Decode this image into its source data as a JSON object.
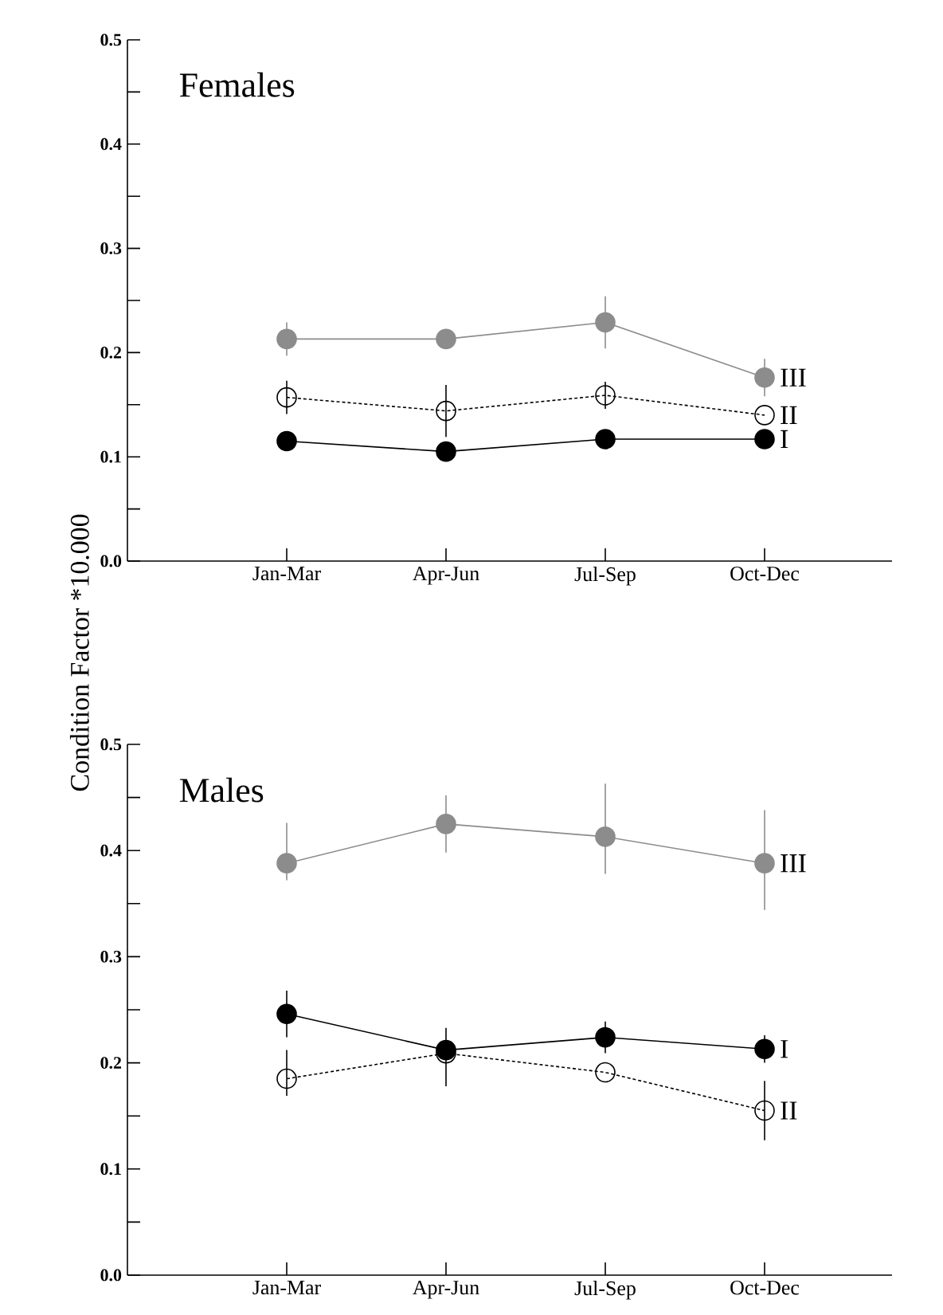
{
  "chart_data": [
    {
      "type": "line",
      "title": "Females",
      "ylabel": "Condition Factor *10.000",
      "categories": [
        "Jan-Mar",
        "Apr-Jun",
        "Jul-Sep",
        "Oct-Dec"
      ],
      "ylim": [
        0,
        0.5
      ],
      "yticks": [
        {
          "value": 0,
          "label": "0.0"
        },
        {
          "value": 0.05,
          "label": null
        },
        {
          "value": 0.1,
          "label": "0.1"
        },
        {
          "value": 0.15,
          "label": null
        },
        {
          "value": 0.2,
          "label": "0.2"
        },
        {
          "value": 0.25,
          "label": null
        },
        {
          "value": 0.3,
          "label": "0.3"
        },
        {
          "value": 0.35,
          "label": null
        },
        {
          "value": 0.4,
          "label": "0.4"
        },
        {
          "value": 0.45,
          "label": null
        },
        {
          "value": 0.5,
          "label": "0.5"
        }
      ],
      "marker": "circle",
      "series": [
        {
          "name": "I",
          "color": "#000000",
          "line_style": "solid",
          "values": [
            0.115,
            0.105,
            0.117,
            0.117
          ]
        },
        {
          "name": "II",
          "color": "#000000",
          "line_style": "dashed",
          "values": [
            0.157,
            0.144,
            0.159,
            0.14
          ],
          "errors": [
            0.016,
            0.025,
            0.013,
            null
          ]
        },
        {
          "name": "III",
          "color": "#8c8c8c",
          "line_style": "solid",
          "values": [
            0.213,
            0.213,
            0.229,
            0.176
          ],
          "errors": [
            0.016,
            null,
            0.025,
            0.018
          ]
        }
      ]
    },
    {
      "type": "line",
      "title": "Males",
      "categories": [
        "Jan-Mar",
        "Apr-Jun",
        "Jul-Sep",
        "Oct-Dec"
      ],
      "ylim": [
        0,
        0.5
      ],
      "yticks": [
        {
          "value": 0,
          "label": "0.0"
        },
        {
          "value": 0.05,
          "label": null
        },
        {
          "value": 0.1,
          "label": "0.1"
        },
        {
          "value": 0.15,
          "label": null
        },
        {
          "value": 0.2,
          "label": "0.2"
        },
        {
          "value": 0.25,
          "label": null
        },
        {
          "value": 0.3,
          "label": "0.3"
        },
        {
          "value": 0.35,
          "label": null
        },
        {
          "value": 0.4,
          "label": "0.4"
        },
        {
          "value": 0.45,
          "label": null
        },
        {
          "value": 0.5,
          "label": "0.5"
        }
      ],
      "marker": "circle",
      "series": [
        {
          "name": "I",
          "color": "#000000",
          "line_style": "solid",
          "values": [
            0.246,
            0.212,
            0.224,
            0.213
          ],
          "errors": [
            0.022,
            [
              0.178,
              0.233
            ],
            0.015,
            0.013
          ]
        },
        {
          "name": "II",
          "color": "#000000",
          "line_style": "dashed",
          "values": [
            0.185,
            0.209,
            0.191,
            0.155
          ],
          "errors": [
            [
              0.169,
              0.212
            ],
            null,
            null,
            0.028
          ]
        },
        {
          "name": "III",
          "color": "#8c8c8c",
          "line_style": "solid",
          "values": [
            0.388,
            0.425,
            0.413,
            0.388
          ],
          "errors": [
            [
              0.372,
              0.426
            ],
            0.027,
            [
              0.378,
              0.463
            ],
            [
              0.344,
              0.438
            ]
          ]
        }
      ]
    }
  ]
}
